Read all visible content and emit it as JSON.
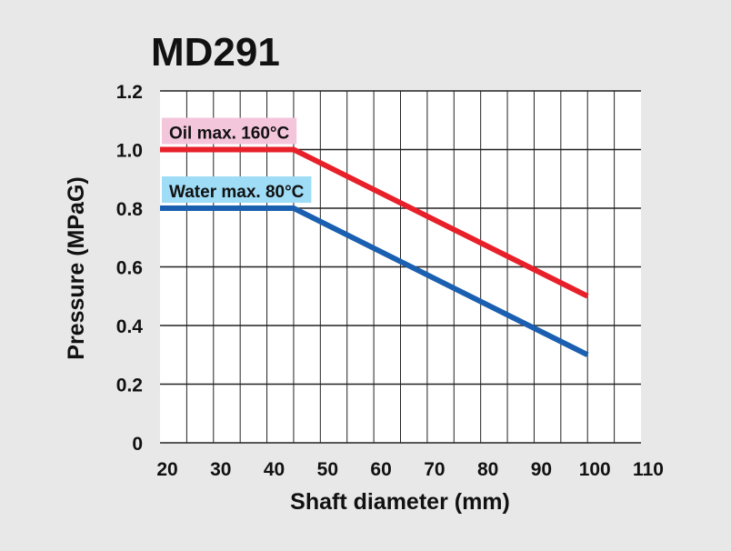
{
  "chart_data": {
    "type": "line",
    "title": "MD291",
    "xlabel": "Shaft diameter (mm)",
    "ylabel": "Pressure (MPaG)",
    "xlim": [
      20,
      110
    ],
    "ylim": [
      0,
      1.2
    ],
    "x_ticks": [
      "20",
      "30",
      "40",
      "50",
      "60",
      "70",
      "80",
      "90",
      "100",
      "110"
    ],
    "y_ticks": [
      "0",
      "0.2",
      "0.4",
      "0.6",
      "0.8",
      "1.0",
      "1.2"
    ],
    "grid": true,
    "series": [
      {
        "name": "Oil  max. 160°C",
        "color": "#e8202a",
        "label_bg": "#f4c6dc",
        "x": [
          20,
          45,
          100
        ],
        "y": [
          1.0,
          1.0,
          0.5
        ]
      },
      {
        "name": "Water  max. 80°C",
        "color": "#1a5fb0",
        "label_bg": "#9fdcf5",
        "x": [
          20,
          45,
          100
        ],
        "y": [
          0.8,
          0.8,
          0.3
        ]
      }
    ]
  }
}
